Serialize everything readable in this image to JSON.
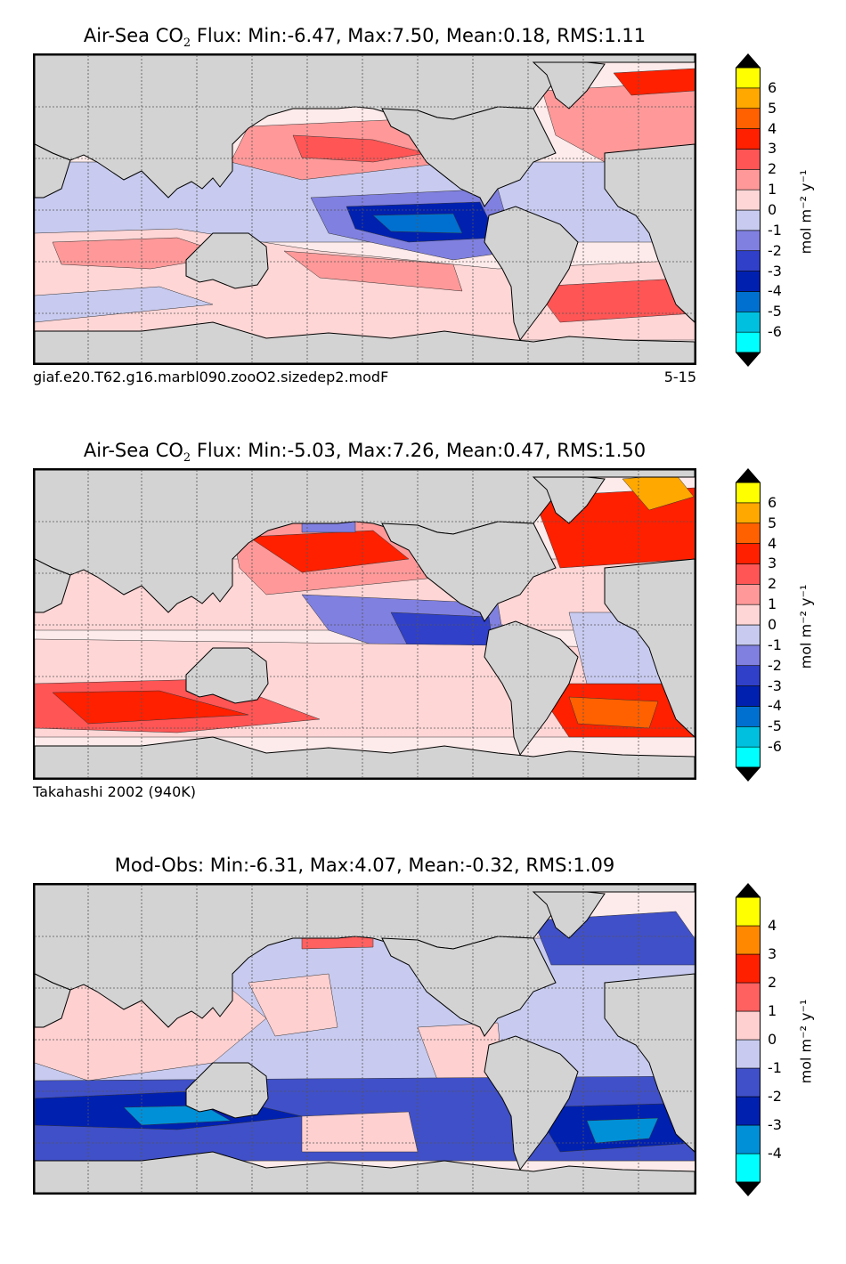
{
  "palette": {
    "land": "#d3d3d3",
    "white": "#ffffff",
    "grid": "#555555",
    "flux_colors": [
      "#00ffff",
      "#00c0e0",
      "#0070d0",
      "#0020b0",
      "#3040c8",
      "#8080e0",
      "#c8cbef",
      "#ffd6d6",
      "#ff9999",
      "#ff5555",
      "#ff2000",
      "#ff6000",
      "#ffa800",
      "#ffff00"
    ],
    "diff_colors": [
      "#00ffff",
      "#0090d8",
      "#0020b0",
      "#4050c8",
      "#c8cbef",
      "#ffd0d0",
      "#ff6060",
      "#ff2000",
      "#ff8800",
      "#ffff00"
    ]
  },
  "panels": [
    {
      "title_prefix": "Air-Sea CO",
      "title_sub": "2",
      "title_suffix": " Flux: Min:-6.47, Max:7.50, Mean:0.18, RMS:1.11",
      "caption_left": "giaf.e20.T62.g16.marbl090.zooO2.sizedep2.modF",
      "caption_right": "5-15",
      "colorbar": {
        "ticks": [
          "6",
          "5",
          "4",
          "3",
          "2",
          "1",
          "0",
          "-1",
          "-2",
          "-3",
          "-4",
          "-5",
          "-6"
        ],
        "units": "mol m⁻² y⁻¹"
      },
      "chart_data": {
        "type": "heatmap",
        "title": "Air-Sea CO2 Flux",
        "min": -6.47,
        "max": 7.5,
        "mean": 0.18,
        "rms": 1.11,
        "colorbar_levels": [
          -7,
          -6,
          -5,
          -4,
          -3,
          -2,
          -1,
          0,
          1,
          2,
          3,
          4,
          5,
          6,
          7
        ],
        "extend": "both",
        "units": "mol m^-2 y^-1"
      }
    },
    {
      "title_prefix": "Air-Sea CO",
      "title_sub": "2",
      "title_suffix": " Flux: Min:-5.03, Max:7.26, Mean:0.47, RMS:1.50",
      "caption_left": "Takahashi 2002 (940K)",
      "caption_right": "",
      "colorbar": {
        "ticks": [
          "6",
          "5",
          "4",
          "3",
          "2",
          "1",
          "0",
          "-1",
          "-2",
          "-3",
          "-4",
          "-5",
          "-6"
        ],
        "units": "mol m⁻² y⁻¹"
      },
      "chart_data": {
        "type": "heatmap",
        "title": "Air-Sea CO2 Flux",
        "min": -5.03,
        "max": 7.26,
        "mean": 0.47,
        "rms": 1.5,
        "colorbar_levels": [
          -7,
          -6,
          -5,
          -4,
          -3,
          -2,
          -1,
          0,
          1,
          2,
          3,
          4,
          5,
          6,
          7
        ],
        "extend": "both",
        "units": "mol m^-2 y^-1"
      }
    },
    {
      "title_prefix": "Mod-Obs: Min:-6.31, Max:4.07, Mean:-0.32, RMS:1.09",
      "title_sub": "",
      "title_suffix": "",
      "caption_left": "",
      "caption_right": "",
      "colorbar": {
        "ticks": [
          "4",
          "3",
          "2",
          "1",
          "0",
          "-1",
          "-2",
          "-3",
          "-4"
        ],
        "units": "mol m⁻² y⁻¹"
      },
      "chart_data": {
        "type": "heatmap",
        "title": "Mod-Obs",
        "min": -6.31,
        "max": 4.07,
        "mean": -0.32,
        "rms": 1.09,
        "colorbar_levels": [
          -5,
          -4,
          -3,
          -2,
          -1,
          0,
          1,
          2,
          3,
          4,
          5
        ],
        "extend": "both",
        "units": "mol m^-2 y^-1"
      }
    }
  ]
}
